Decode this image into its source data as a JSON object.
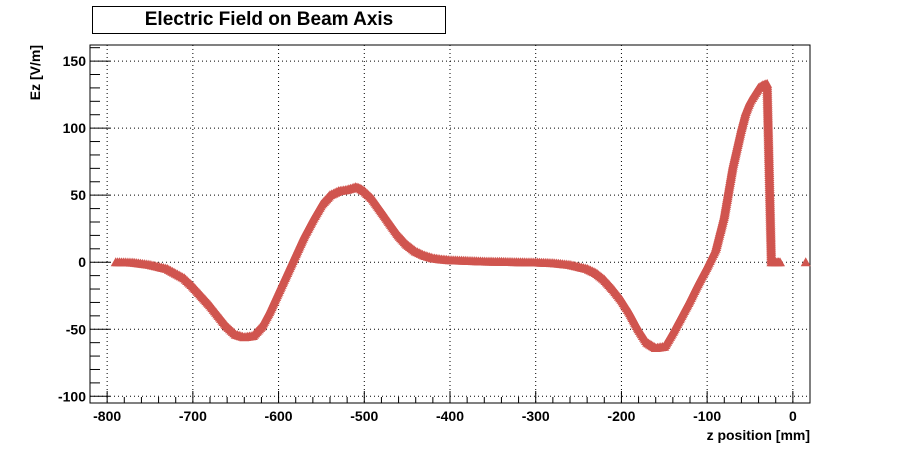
{
  "chart_data": {
    "type": "scatter",
    "title": "Electric Field on Beam Axis",
    "xlabel": "z position [mm]",
    "ylabel": "Ez [V/m]",
    "xlim": [
      -820,
      20
    ],
    "ylim": [
      -105,
      162
    ],
    "grid": true,
    "marker": "triangle",
    "color": "#d0554f",
    "x_ticks": [
      -800,
      -700,
      -600,
      -500,
      -400,
      -300,
      -200,
      -100,
      0
    ],
    "y_ticks": [
      -100,
      -50,
      0,
      50,
      100,
      150
    ],
    "series": [
      {
        "name": "",
        "x": [
          -790,
          -770,
          -750,
          -730,
          -710,
          -700,
          -690,
          -680,
          -670,
          -660,
          -650,
          -640,
          -630,
          -620,
          -610,
          -600,
          -590,
          -580,
          -570,
          -560,
          -550,
          -540,
          -530,
          -520,
          -510,
          -505,
          -500,
          -490,
          -480,
          -470,
          -460,
          -450,
          -440,
          -430,
          -420,
          -410,
          -400,
          -380,
          -360,
          -340,
          -320,
          -300,
          -280,
          -260,
          -240,
          -230,
          -220,
          -210,
          -200,
          -190,
          -180,
          -170,
          -160,
          -150,
          -140,
          -130,
          -120,
          -110,
          -100,
          -90,
          -80,
          -70,
          -60,
          -55,
          -50,
          -45,
          -40,
          -35,
          -30,
          -25,
          -20,
          -15,
          15
        ],
        "y": [
          0,
          -0.3,
          -2,
          -5,
          -12,
          -18,
          -25,
          -32,
          -40,
          -48,
          -54,
          -56,
          -55,
          -48,
          -36,
          -22,
          -8,
          6,
          20,
          32,
          43,
          50,
          53,
          54,
          56,
          55,
          53,
          47,
          38,
          29,
          20,
          13,
          8,
          5,
          3,
          2,
          1.5,
          1,
          0.5,
          0.3,
          0,
          -0.2,
          -0.7,
          -2,
          -5,
          -8,
          -13,
          -20,
          -28,
          -38,
          -50,
          -60,
          -64,
          -63,
          -52,
          -40,
          -28,
          -15,
          -3,
          10,
          35,
          72,
          100,
          112,
          120,
          125,
          130,
          132,
          133,
          0,
          0,
          0,
          0
        ]
      }
    ]
  }
}
